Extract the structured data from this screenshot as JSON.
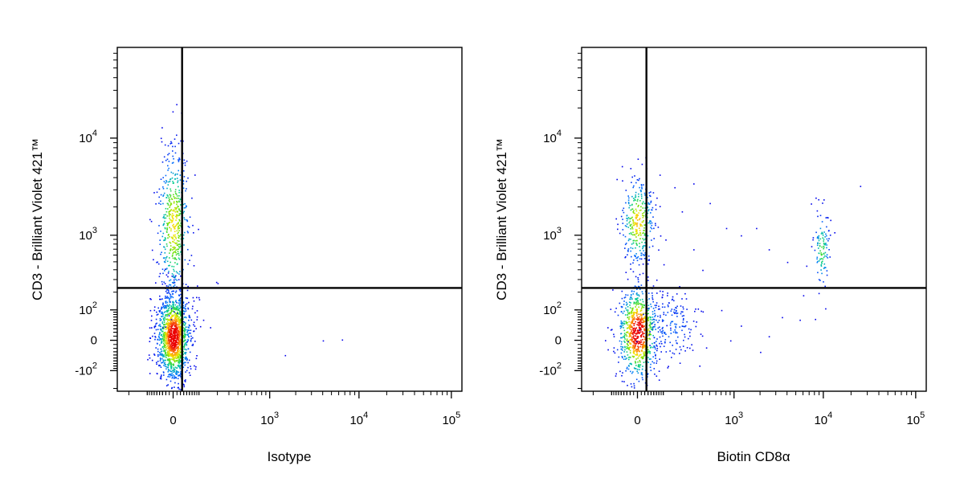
{
  "chart_data": [
    {
      "type": "scatter",
      "title": "",
      "xlabel": "Isotype",
      "ylabel": "CD3 - Brilliant Violet 421™",
      "x_scale": "biexponential",
      "y_scale": "biexponential",
      "xlim": [
        -300,
        130000
      ],
      "ylim": [
        -220,
        80000
      ],
      "x_ticks": [
        {
          "value": 0,
          "base": "0",
          "exp": ""
        },
        {
          "value": 1000,
          "base": "10",
          "exp": "3"
        },
        {
          "value": 10000,
          "base": "10",
          "exp": "4"
        },
        {
          "value": 100000,
          "base": "10",
          "exp": "5"
        }
      ],
      "y_ticks": [
        {
          "value": -100,
          "base": "-10",
          "exp": "2"
        },
        {
          "value": 0,
          "base": "0",
          "exp": ""
        },
        {
          "value": 100,
          "base": "10",
          "exp": "2"
        },
        {
          "value": 1000,
          "base": "10",
          "exp": "3"
        },
        {
          "value": 10000,
          "base": "10",
          "exp": "4"
        }
      ],
      "gate": {
        "x": 25,
        "y": 230
      },
      "populations": [
        {
          "x": 0,
          "y": 10,
          "sx": 0.09,
          "sy": 0.22,
          "n": 1400,
          "dens": 1.0
        },
        {
          "x": 0,
          "y": 1300,
          "sx": 0.09,
          "sy": 0.4,
          "n": 500,
          "dens": 0.6
        }
      ],
      "sparse_points": [
        [
          45,
          140
        ],
        [
          60,
          120
        ],
        [
          70,
          90
        ],
        [
          110,
          60
        ],
        [
          150,
          35
        ],
        [
          190,
          280
        ],
        [
          200,
          270
        ],
        [
          80,
          250
        ],
        [
          1500,
          -40
        ],
        [
          4000,
          0
        ],
        [
          6500,
          2
        ],
        [
          40,
          -2
        ]
      ],
      "grid": false,
      "legend": "none"
    },
    {
      "type": "scatter",
      "title": "",
      "xlabel": "Biotin CD8α",
      "ylabel": "CD3 - Brilliant Violet 421™",
      "x_scale": "biexponential",
      "y_scale": "biexponential",
      "xlim": [
        -300,
        130000
      ],
      "ylim": [
        -220,
        80000
      ],
      "x_ticks": [
        {
          "value": 0,
          "base": "0",
          "exp": ""
        },
        {
          "value": 1000,
          "base": "10",
          "exp": "3"
        },
        {
          "value": 10000,
          "base": "10",
          "exp": "4"
        },
        {
          "value": 100000,
          "base": "10",
          "exp": "5"
        }
      ],
      "y_ticks": [
        {
          "value": -100,
          "base": "-10",
          "exp": "2"
        },
        {
          "value": 0,
          "base": "0",
          "exp": ""
        },
        {
          "value": 100,
          "base": "10",
          "exp": "2"
        },
        {
          "value": 1000,
          "base": "10",
          "exp": "3"
        },
        {
          "value": 10000,
          "base": "10",
          "exp": "4"
        }
      ],
      "gate": {
        "x": 25,
        "y": 230
      },
      "populations": [
        {
          "x": 0,
          "y": 20,
          "sx": 0.11,
          "sy": 0.24,
          "n": 850,
          "dens": 1.0
        },
        {
          "x": 0,
          "y": 1400,
          "sx": 0.09,
          "sy": 0.22,
          "n": 320,
          "dens": 0.65
        },
        {
          "x": 9500,
          "y": 700,
          "sx": 0.045,
          "sy": 0.2,
          "n": 110,
          "dens": 0.4
        },
        {
          "x": 120,
          "y": 40,
          "sx": 0.16,
          "sy": 0.2,
          "n": 160,
          "dens": 0.12
        }
      ],
      "sparse_points": [
        [
          150,
          3200
        ],
        [
          300,
          3500
        ],
        [
          500,
          2200
        ],
        [
          800,
          1200
        ],
        [
          1200,
          1000
        ],
        [
          1800,
          1200
        ],
        [
          2500,
          700
        ],
        [
          4000,
          500
        ],
        [
          6500,
          450
        ],
        [
          25000,
          3300
        ],
        [
          200,
          1800
        ],
        [
          60,
          2500
        ],
        [
          400,
          400
        ],
        [
          700,
          100
        ],
        [
          1200,
          40
        ],
        [
          2500,
          10
        ],
        [
          3500,
          70
        ],
        [
          5500,
          60
        ],
        [
          900,
          0
        ],
        [
          2000,
          -30
        ],
        [
          6000,
          180
        ],
        [
          300,
          700
        ],
        [
          100,
          900
        ]
      ],
      "grid": false,
      "legend": "none"
    }
  ]
}
